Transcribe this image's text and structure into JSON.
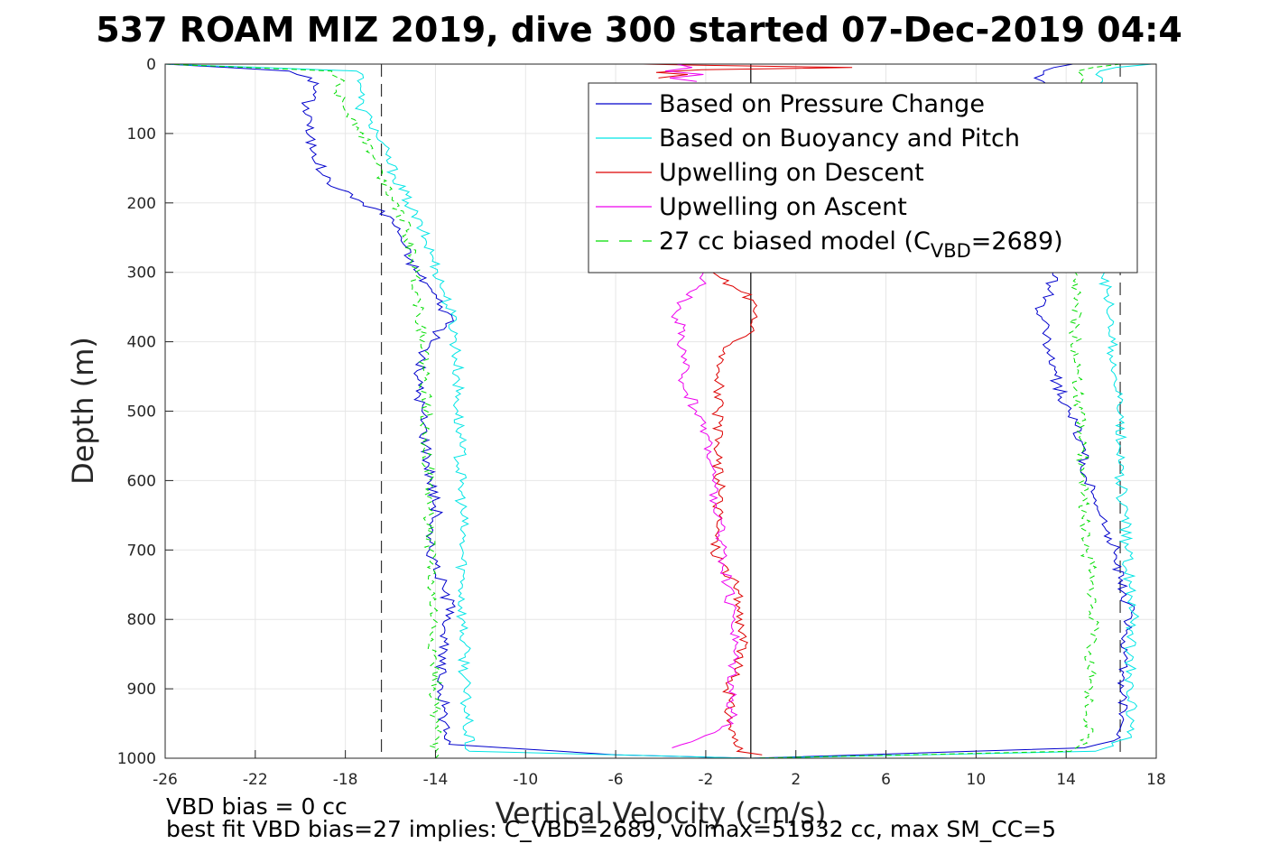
{
  "chart_data": {
    "type": "line",
    "title": "537 ROAM MIZ 2019, dive 300 started 07-Dec-2019 04:4",
    "xlabel": "Vertical Velocity (cm/s)",
    "ylabel": "Depth (m)",
    "xlim": [
      -26,
      18
    ],
    "ylim": [
      1000,
      0
    ],
    "y_reversed": true,
    "grid": true,
    "legend_position": "top-right",
    "xticks": [
      "-26",
      "-22",
      "-18",
      "-14",
      "-10",
      "-6",
      "-2",
      "2",
      "6",
      "10",
      "14",
      "18"
    ],
    "yticks": [
      "0",
      "100",
      "200",
      "300",
      "400",
      "500",
      "600",
      "700",
      "800",
      "900",
      "1000"
    ],
    "reference_lines": [
      {
        "x": -16.4,
        "style": "dashed",
        "color": "#333333"
      },
      {
        "x": 0,
        "style": "solid",
        "color": "#000000"
      },
      {
        "x": 16.4,
        "style": "dashed",
        "color": "#333333"
      }
    ],
    "legend": [
      {
        "label": "Based on Pressure Change",
        "color": "#0000cc",
        "dash": "solid"
      },
      {
        "label": "Based on Buoyancy and Pitch",
        "color": "#00e5e5",
        "dash": "solid"
      },
      {
        "label": "Upwelling on Descent",
        "color": "#dd0000",
        "dash": "solid"
      },
      {
        "label": "Upwelling on Ascent",
        "color": "#ee00ee",
        "dash": "solid"
      },
      {
        "label": "27 cc biased model (C",
        "sub": "VBD",
        "suffix": "=2689)",
        "color": "#00dd00",
        "dash": "dashed"
      }
    ],
    "series": [
      {
        "name": "Based on Pressure Change",
        "phase": "descent",
        "color": "#0000cc",
        "dash": "solid",
        "y": [
          0,
          10,
          20,
          40,
          60,
          80,
          100,
          130,
          160,
          180,
          200,
          220,
          250,
          280,
          300,
          320,
          350,
          370,
          390,
          420,
          450,
          500,
          550,
          600,
          650,
          680,
          720,
          760,
          790,
          820,
          860,
          900,
          940,
          980,
          995,
          1000
        ],
        "x": [
          -26,
          -20.5,
          -19.5,
          -19.3,
          -19.8,
          -19.5,
          -19.7,
          -19.3,
          -19,
          -18.3,
          -17.2,
          -16,
          -15.5,
          -15.2,
          -14.8,
          -14.3,
          -13.7,
          -13.2,
          -14,
          -14.6,
          -14.8,
          -14.6,
          -14.4,
          -14.2,
          -13.9,
          -14.4,
          -14,
          -13.6,
          -13.2,
          -13.6,
          -13.8,
          -13.7,
          -13.6,
          -13.4,
          -6,
          0
        ]
      },
      {
        "name": "Based on Buoyancy and Pitch",
        "phase": "descent",
        "color": "#00e5e5",
        "dash": "solid",
        "y": [
          0,
          10,
          20,
          40,
          60,
          80,
          100,
          130,
          160,
          200,
          240,
          280,
          300,
          330,
          360,
          400,
          450,
          500,
          550,
          600,
          650,
          700,
          750,
          800,
          850,
          900,
          950,
          990,
          995,
          1000
        ],
        "x": [
          -26,
          -17.5,
          -17.2,
          -17.3,
          -17.4,
          -16.9,
          -16.6,
          -16.2,
          -15.8,
          -15.2,
          -14.6,
          -14.1,
          -13.9,
          -13.6,
          -13.3,
          -13.1,
          -13.0,
          -13.0,
          -12.9,
          -12.9,
          -12.8,
          -12.8,
          -12.8,
          -12.8,
          -12.7,
          -12.7,
          -12.6,
          -12.5,
          -6,
          0
        ]
      },
      {
        "name": "27 cc biased model (CVBD=2689)",
        "phase": "descent",
        "color": "#00dd00",
        "dash": "dashed",
        "y": [
          0,
          10,
          20,
          40,
          60,
          80,
          100,
          130,
          160,
          200,
          240,
          280,
          300,
          330,
          360,
          400,
          450,
          500,
          550,
          600,
          650,
          700,
          750,
          800,
          850,
          900,
          950,
          990,
          1000
        ],
        "x": [
          -26,
          -18.6,
          -18.3,
          -18.4,
          -18.1,
          -17.6,
          -17.2,
          -16.8,
          -16.4,
          -15.7,
          -15.3,
          -15.0,
          -14.9,
          -14.8,
          -14.7,
          -14.5,
          -14.5,
          -14.4,
          -14.4,
          -14.3,
          -14.3,
          -14.2,
          -14.2,
          -14.1,
          -14.1,
          -14.0,
          -14.0,
          -14.0,
          -14.0
        ]
      },
      {
        "name": "Based on Pressure Change",
        "phase": "ascent",
        "color": "#0000cc",
        "dash": "solid",
        "y": [
          1000,
          985,
          970,
          940,
          900,
          860,
          820,
          790,
          760,
          720,
          700,
          680,
          650,
          620,
          600,
          560,
          520,
          500,
          460,
          420,
          400,
          380,
          360,
          340,
          320,
          300
        ],
        "x": [
          0,
          14.8,
          16.4,
          16.5,
          16.4,
          16.6,
          16.7,
          16.9,
          16.5,
          16.2,
          16.2,
          15.7,
          15.5,
          15.2,
          14.9,
          14.7,
          14.4,
          14.1,
          13.6,
          13.3,
          13.2,
          13.2,
          12.7,
          13.1,
          13.3,
          13.4
        ]
      },
      {
        "name": "Based on Pressure Change",
        "phase": "ascent-top",
        "color": "#0000cc",
        "dash": "solid",
        "y": [
          0,
          10,
          20,
          30
        ],
        "x": [
          14.3,
          13.0,
          12.6,
          13.2
        ]
      },
      {
        "name": "Based on Buoyancy and Pitch",
        "phase": "ascent",
        "color": "#00e5e5",
        "dash": "solid",
        "y": [
          1000,
          990,
          970,
          950,
          900,
          850,
          800,
          750,
          700,
          650,
          600,
          550,
          500,
          450,
          400,
          350,
          300
        ],
        "x": [
          0,
          15.3,
          16.9,
          16.9,
          16.9,
          16.8,
          17.0,
          16.8,
          16.7,
          16.6,
          16.4,
          16.4,
          16.3,
          16.2,
          16.0,
          15.9,
          15.7
        ]
      },
      {
        "name": "Based on Buoyancy and Pitch",
        "phase": "ascent-top",
        "color": "#00e5e5",
        "dash": "solid",
        "y": [
          0,
          5,
          10,
          20,
          30
        ],
        "x": [
          17.8,
          16.2,
          15.5,
          15.6,
          15.4
        ]
      },
      {
        "name": "27 cc biased model (CVBD=2689)",
        "phase": "ascent",
        "color": "#00dd00",
        "dash": "dashed",
        "y": [
          1000,
          990,
          970,
          950,
          900,
          850,
          800,
          750,
          700,
          650,
          600,
          550,
          500,
          450,
          400,
          350,
          300
        ],
        "x": [
          0,
          14.2,
          15.0,
          15.0,
          15.1,
          15.1,
          15.2,
          15.2,
          14.9,
          14.8,
          14.8,
          14.7,
          14.6,
          14.5,
          14.4,
          14.4,
          14.4
        ]
      },
      {
        "name": "27 cc biased model (CVBD=2689)",
        "phase": "ascent-top",
        "color": "#00dd00",
        "dash": "dashed",
        "y": [
          0,
          10,
          20,
          30
        ],
        "x": [
          16.4,
          14.5,
          14.8,
          14.7
        ]
      },
      {
        "name": "Upwelling on Descent",
        "color": "#dd0000",
        "dash": "solid",
        "y": [
          300,
          320,
          340,
          360,
          380,
          400,
          430,
          460,
          500,
          550,
          600,
          650,
          700,
          750,
          800,
          850,
          900,
          950,
          990,
          995
        ],
        "x": [
          -1.7,
          -0.8,
          0.1,
          0.2,
          0.1,
          -0.8,
          -1.3,
          -1.4,
          -1.5,
          -1.5,
          -1.4,
          -1.4,
          -1.6,
          -0.7,
          -0.4,
          -0.4,
          -1.0,
          -0.9,
          -0.6,
          0.5
        ]
      },
      {
        "name": "Upwelling on Descent",
        "phase": "top",
        "color": "#dd0000",
        "dash": "solid",
        "y": [
          0,
          2,
          5,
          8,
          12,
          15,
          20
        ],
        "x": [
          -4.8,
          -1.6,
          4.5,
          -2.2,
          -4.2,
          -2.8,
          -4.1
        ]
      },
      {
        "name": "Upwelling on Ascent",
        "color": "#ee00ee",
        "dash": "solid",
        "y": [
          300,
          320,
          340,
          360,
          380,
          400,
          430,
          460,
          500,
          550,
          600,
          650,
          700,
          750,
          800,
          850,
          900,
          950,
          985
        ],
        "x": [
          -2.1,
          -2.3,
          -2.9,
          -3.4,
          -3.0,
          -3.2,
          -3.0,
          -3.0,
          -2.4,
          -1.8,
          -1.7,
          -1.5,
          -1.2,
          -1.1,
          -0.7,
          -0.7,
          -0.8,
          -0.8,
          -3.5
        ]
      },
      {
        "name": "Upwelling on Ascent",
        "phase": "top",
        "color": "#ee00ee",
        "dash": "solid",
        "y": [
          0,
          5,
          10,
          15,
          20,
          25
        ],
        "x": [
          -3.3,
          -2.6,
          -3.8,
          -2.1,
          -3.6,
          -2.4
        ]
      }
    ]
  },
  "notes": {
    "line1": "VBD bias = 0 cc",
    "line2": "best fit VBD bias=27 implies: C_VBD=2689, volmax=51932 cc, max SM_CC=5"
  }
}
